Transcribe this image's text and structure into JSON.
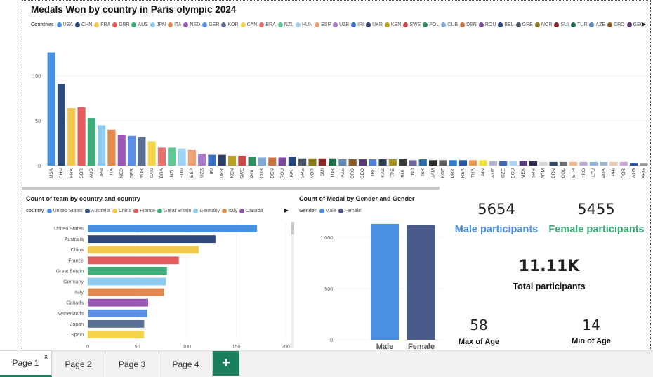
{
  "report": {
    "title": "Medals Won by country in Paris olympic 2024"
  },
  "medals_legend": {
    "label": "Countries",
    "items": [
      {
        "name": "USA",
        "color": "#4a90e2"
      },
      {
        "name": "CHN",
        "color": "#2d4a7a"
      },
      {
        "name": "FRA",
        "color": "#f2c94c"
      },
      {
        "name": "GBR",
        "color": "#e35d5d"
      },
      {
        "name": "AUS",
        "color": "#3dae7a"
      },
      {
        "name": "JPN",
        "color": "#8ec9f0"
      },
      {
        "name": "ITA",
        "color": "#e28a4d"
      },
      {
        "name": "NED",
        "color": "#9b59b6"
      },
      {
        "name": "GER",
        "color": "#5b8fe8"
      },
      {
        "name": "KOR",
        "color": "#5a6f96"
      },
      {
        "name": "CAN",
        "color": "#f5d547"
      },
      {
        "name": "BRA",
        "color": "#e97373"
      },
      {
        "name": "NZL",
        "color": "#5ec995"
      },
      {
        "name": "HUN",
        "color": "#9fd0f5"
      },
      {
        "name": "ESP",
        "color": "#eca074"
      },
      {
        "name": "UZB",
        "color": "#a77bc7"
      },
      {
        "name": "IRI",
        "color": "#3f6fc4"
      },
      {
        "name": "UKR",
        "color": "#2c3e63"
      },
      {
        "name": "KEN",
        "color": "#b8a226"
      },
      {
        "name": "SWE",
        "color": "#c94a4a"
      },
      {
        "name": "POL",
        "color": "#2f8f63"
      },
      {
        "name": "CUB",
        "color": "#7fa7d6"
      },
      {
        "name": "DEN",
        "color": "#c9743f"
      },
      {
        "name": "ROU",
        "color": "#7b4a9b"
      },
      {
        "name": "BEL",
        "color": "#27467a"
      },
      {
        "name": "GRE",
        "color": "#4a5568"
      },
      {
        "name": "NOR",
        "color": "#8a7a1c"
      },
      {
        "name": "SUI",
        "color": "#8b2a2a"
      },
      {
        "name": "TUR",
        "color": "#1f6e4b"
      },
      {
        "name": "AZE",
        "color": "#5f86b5"
      },
      {
        "name": "CRO",
        "color": "#8b5a2b"
      },
      {
        "name": "GEO",
        "color": "#5b3a78"
      }
    ]
  },
  "medals_chart": {
    "yticks": [
      "100",
      "50",
      "0"
    ],
    "chart_data": {
      "type": "bar",
      "title": "Medals Won by country in Paris olympic 2024",
      "ylim": [
        0,
        135
      ],
      "categories": [
        "USA",
        "CHN",
        "FRA",
        "GBR",
        "AUS",
        "JPN",
        "ITA",
        "NED",
        "GER",
        "KOR",
        "CAN",
        "BRA",
        "NZL",
        "HUN",
        "ESP",
        "UZB",
        "IRI",
        "UKR",
        "KEN",
        "SWE",
        "POL",
        "CUB",
        "DEN",
        "ROU",
        "BEL",
        "GRE",
        "NOR",
        "SUI",
        "TUR",
        "AZE",
        "CRO",
        "GEO",
        "IRL",
        "KAZ",
        "TPE",
        "BUL",
        "IND",
        "ISR",
        "JAM",
        "KGZ",
        "PRK",
        "RSA",
        "THA",
        "AIN",
        "AUT",
        "CZE",
        "ECU",
        "MEX",
        "SRB",
        "ARM",
        "BRN",
        "COL",
        "ETH",
        "HKG",
        "LTU",
        "MDA",
        "PHI",
        "POR",
        "ALG",
        "ARG"
      ],
      "values": [
        126,
        91,
        64,
        65,
        53,
        45,
        40,
        34,
        33,
        32,
        27,
        20,
        20,
        19,
        18,
        13,
        12,
        12,
        11,
        11,
        10,
        9,
        9,
        9,
        10,
        8,
        8,
        8,
        8,
        7,
        7,
        7,
        7,
        7,
        7,
        7,
        6,
        7,
        6,
        6,
        6,
        6,
        6,
        6,
        5,
        5,
        5,
        5,
        5,
        4,
        4,
        4,
        4,
        4,
        4,
        4,
        4,
        4,
        3,
        3
      ],
      "colors": [
        "#4a90e2",
        "#2d4a7a",
        "#f2c94c",
        "#e35d5d",
        "#3dae7a",
        "#8ec9f0",
        "#e28a4d",
        "#9b59b6",
        "#5b8fe8",
        "#5a6f96",
        "#f5d547",
        "#e97373",
        "#5ec995",
        "#9fd0f5",
        "#eca074",
        "#a77bc7",
        "#3f6fc4",
        "#2c3e63",
        "#b8a226",
        "#c94a4a",
        "#2f8f63",
        "#7fa7d6",
        "#c9743f",
        "#7b4a9b",
        "#27467a",
        "#4a5568",
        "#8a7a1c",
        "#8b2a2a",
        "#1f6e4b",
        "#5f86b5",
        "#8b5a2b",
        "#5b3a78",
        "#4f7fd8",
        "#2f3e57",
        "#a3921f",
        "#3a3a3a",
        "#6a6a9a",
        "#2d6fa8",
        "#2b2b2b",
        "#5e5e5e",
        "#2f7fd1",
        "#2a59a8",
        "#ee9a4d",
        "#f2e33c",
        "#b5b5d5",
        "#3f68b0",
        "#a9d3f5",
        "#5a3e82",
        "#2c2c50",
        "#d6d6d6",
        "#2c4a6a",
        "#6f6f6f",
        "#f0b88a",
        "#b7a9d6",
        "#8fb6e8",
        "#a5b5cf",
        "#e6ccb0",
        "#c7a7d9",
        "#2f4fa0",
        "#9a9a9a"
      ]
    }
  },
  "team_chart": {
    "title": "Count of team by country and country",
    "legend": {
      "label": "country",
      "items": [
        {
          "name": "United States",
          "color": "#4a90e2"
        },
        {
          "name": "Australia",
          "color": "#2d4a7a"
        },
        {
          "name": "China",
          "color": "#f2c94c"
        },
        {
          "name": "France",
          "color": "#e35d5d"
        },
        {
          "name": "Great Britain",
          "color": "#3dae7a"
        },
        {
          "name": "Germany",
          "color": "#8ec9f0"
        },
        {
          "name": "Italy",
          "color": "#e28a4d"
        },
        {
          "name": "Canada",
          "color": "#9b59b6"
        }
      ]
    },
    "xticks": [
      "0",
      "50",
      "100",
      "150",
      "200"
    ],
    "chart_data": {
      "type": "bar",
      "orientation": "horizontal",
      "title": "Count of team by country and country",
      "xlim": [
        0,
        200
      ],
      "categories": [
        "United States",
        "Australia",
        "China",
        "France",
        "Great Britain",
        "Germany",
        "Italy",
        "Canada",
        "Netherlands",
        "Japan",
        "Spain"
      ],
      "values": [
        171,
        129,
        112,
        92,
        80,
        79,
        77,
        61,
        60,
        57,
        57
      ],
      "colors": [
        "#4a90e2",
        "#2d4a7a",
        "#f2c94c",
        "#e35d5d",
        "#3dae7a",
        "#8ec9f0",
        "#e28a4d",
        "#9b59b6",
        "#5b8fe8",
        "#5a6f96",
        "#f5d547"
      ]
    }
  },
  "gender_chart": {
    "title": "Count of Medal by Gender and Gender",
    "legend": {
      "label": "Gender",
      "items": [
        {
          "name": "Male",
          "color": "#4a90e2"
        },
        {
          "name": "Female",
          "color": "#4a5a8a"
        }
      ]
    },
    "yticks": [
      "1,000",
      "500",
      "0"
    ],
    "chart_data": {
      "type": "bar",
      "title": "Count of Medal by Gender and Gender",
      "ylim": [
        0,
        1150
      ],
      "categories": [
        "Male",
        "Female"
      ],
      "values": [
        1130,
        1120
      ],
      "colors": [
        "#4a90e2",
        "#4a5a8a"
      ]
    }
  },
  "kpis": {
    "male": {
      "value": "5654",
      "label": "Male participants"
    },
    "female": {
      "value": "5455",
      "label": "Female participants"
    },
    "total": {
      "value": "11.11K",
      "label": "Total participants"
    },
    "max_age": {
      "value": "58",
      "label": "Max of Age"
    },
    "min_age": {
      "value": "14",
      "label": "Min of Age"
    }
  },
  "tabs": {
    "items": [
      {
        "label": "Page 1"
      },
      {
        "label": "Page 2"
      },
      {
        "label": "Page 3"
      },
      {
        "label": "Page 4"
      }
    ],
    "close_glyph": "x",
    "add_glyph": "+"
  },
  "colors": {
    "accent": "#1a7f5a",
    "male": "#4a90e2",
    "female": "#3dae7a"
  }
}
